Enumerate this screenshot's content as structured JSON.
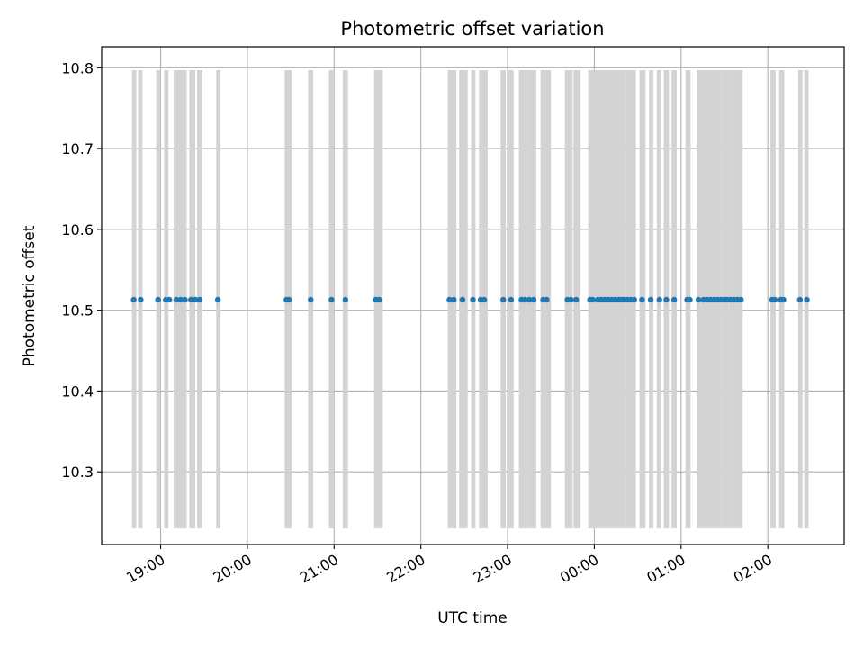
{
  "chart_data": {
    "type": "scatter",
    "title": "Photometric offset variation",
    "xlabel": "UTC time",
    "ylabel": "Photometric offset",
    "grid": true,
    "x_axis": {
      "unit": "hours after 18:00 UTC",
      "range": [
        0.32,
        8.88
      ],
      "ticks": [
        {
          "value": 1,
          "label": "19:00"
        },
        {
          "value": 2,
          "label": "20:00"
        },
        {
          "value": 3,
          "label": "21:00"
        },
        {
          "value": 4,
          "label": "22:00"
        },
        {
          "value": 5,
          "label": "23:00"
        },
        {
          "value": 6,
          "label": "00:00"
        },
        {
          "value": 7,
          "label": "01:00"
        },
        {
          "value": 8,
          "label": "02:00"
        }
      ]
    },
    "y_axis": {
      "range": [
        10.21,
        10.826
      ],
      "ticks": [
        {
          "value": 10.3,
          "label": "10.3"
        },
        {
          "value": 10.4,
          "label": "10.4"
        },
        {
          "value": 10.5,
          "label": "10.5"
        },
        {
          "value": 10.6,
          "label": "10.6"
        },
        {
          "value": 10.7,
          "label": "10.7"
        },
        {
          "value": 10.8,
          "label": "10.8"
        }
      ]
    },
    "colors": {
      "points": "#1f77b4",
      "bands": "#d3d3d3",
      "grid": "#b0b0b0"
    },
    "bands": {
      "y_range": [
        10.23,
        10.797
      ],
      "x_intervals": [
        [
          0.67,
          0.72
        ],
        [
          0.74,
          0.79
        ],
        [
          0.95,
          1.0
        ],
        [
          1.04,
          1.09
        ],
        [
          1.15,
          1.3
        ],
        [
          1.33,
          1.4
        ],
        [
          1.42,
          1.48
        ],
        [
          1.64,
          1.69
        ],
        [
          2.43,
          2.51
        ],
        [
          2.7,
          2.76
        ],
        [
          2.94,
          3.0
        ],
        [
          3.1,
          3.16
        ],
        [
          3.46,
          3.56
        ],
        [
          4.31,
          4.41
        ],
        [
          4.44,
          4.54
        ],
        [
          4.58,
          4.63
        ],
        [
          4.67,
          4.77
        ],
        [
          4.92,
          4.98
        ],
        [
          5.01,
          5.07
        ],
        [
          5.13,
          5.22
        ],
        [
          5.22,
          5.33
        ],
        [
          5.38,
          5.5
        ],
        [
          5.66,
          5.75
        ],
        [
          5.76,
          5.84
        ],
        [
          5.93,
          6.0
        ],
        [
          6.0,
          6.12
        ],
        [
          6.12,
          6.24
        ],
        [
          6.24,
          6.36
        ],
        [
          6.36,
          6.48
        ],
        [
          6.52,
          6.59
        ],
        [
          6.63,
          6.68
        ],
        [
          6.72,
          6.77
        ],
        [
          6.8,
          6.86
        ],
        [
          6.89,
          6.95
        ],
        [
          7.05,
          7.11
        ],
        [
          7.18,
          7.24
        ],
        [
          7.24,
          7.34
        ],
        [
          7.34,
          7.46
        ],
        [
          7.46,
          7.56
        ],
        [
          7.56,
          7.66
        ],
        [
          7.66,
          7.71
        ],
        [
          8.03,
          8.09
        ],
        [
          8.13,
          8.19
        ],
        [
          8.35,
          8.4
        ],
        [
          8.42,
          8.47
        ]
      ]
    },
    "series": [
      {
        "y_value": 10.513,
        "x": [
          0.69,
          0.77,
          0.97,
          1.06,
          1.1,
          1.18,
          1.23,
          1.28,
          1.35,
          1.4,
          1.45,
          1.66,
          2.45,
          2.48,
          2.73,
          2.97,
          3.13,
          3.48,
          3.52,
          4.33,
          4.38,
          4.48,
          4.6,
          4.69,
          4.73,
          4.95,
          5.04,
          5.16,
          5.2,
          5.25,
          5.3,
          5.41,
          5.45,
          5.69,
          5.73,
          5.79,
          5.95,
          5.98,
          6.04,
          6.08,
          6.12,
          6.16,
          6.2,
          6.24,
          6.28,
          6.31,
          6.34,
          6.38,
          6.42,
          6.46,
          6.55,
          6.65,
          6.75,
          6.83,
          6.92,
          7.07,
          7.1,
          7.2,
          7.26,
          7.3,
          7.34,
          7.38,
          7.42,
          7.46,
          7.5,
          7.53,
          7.57,
          7.61,
          7.65,
          7.69,
          8.05,
          8.08,
          8.15,
          8.18,
          8.37,
          8.45
        ]
      }
    ]
  }
}
